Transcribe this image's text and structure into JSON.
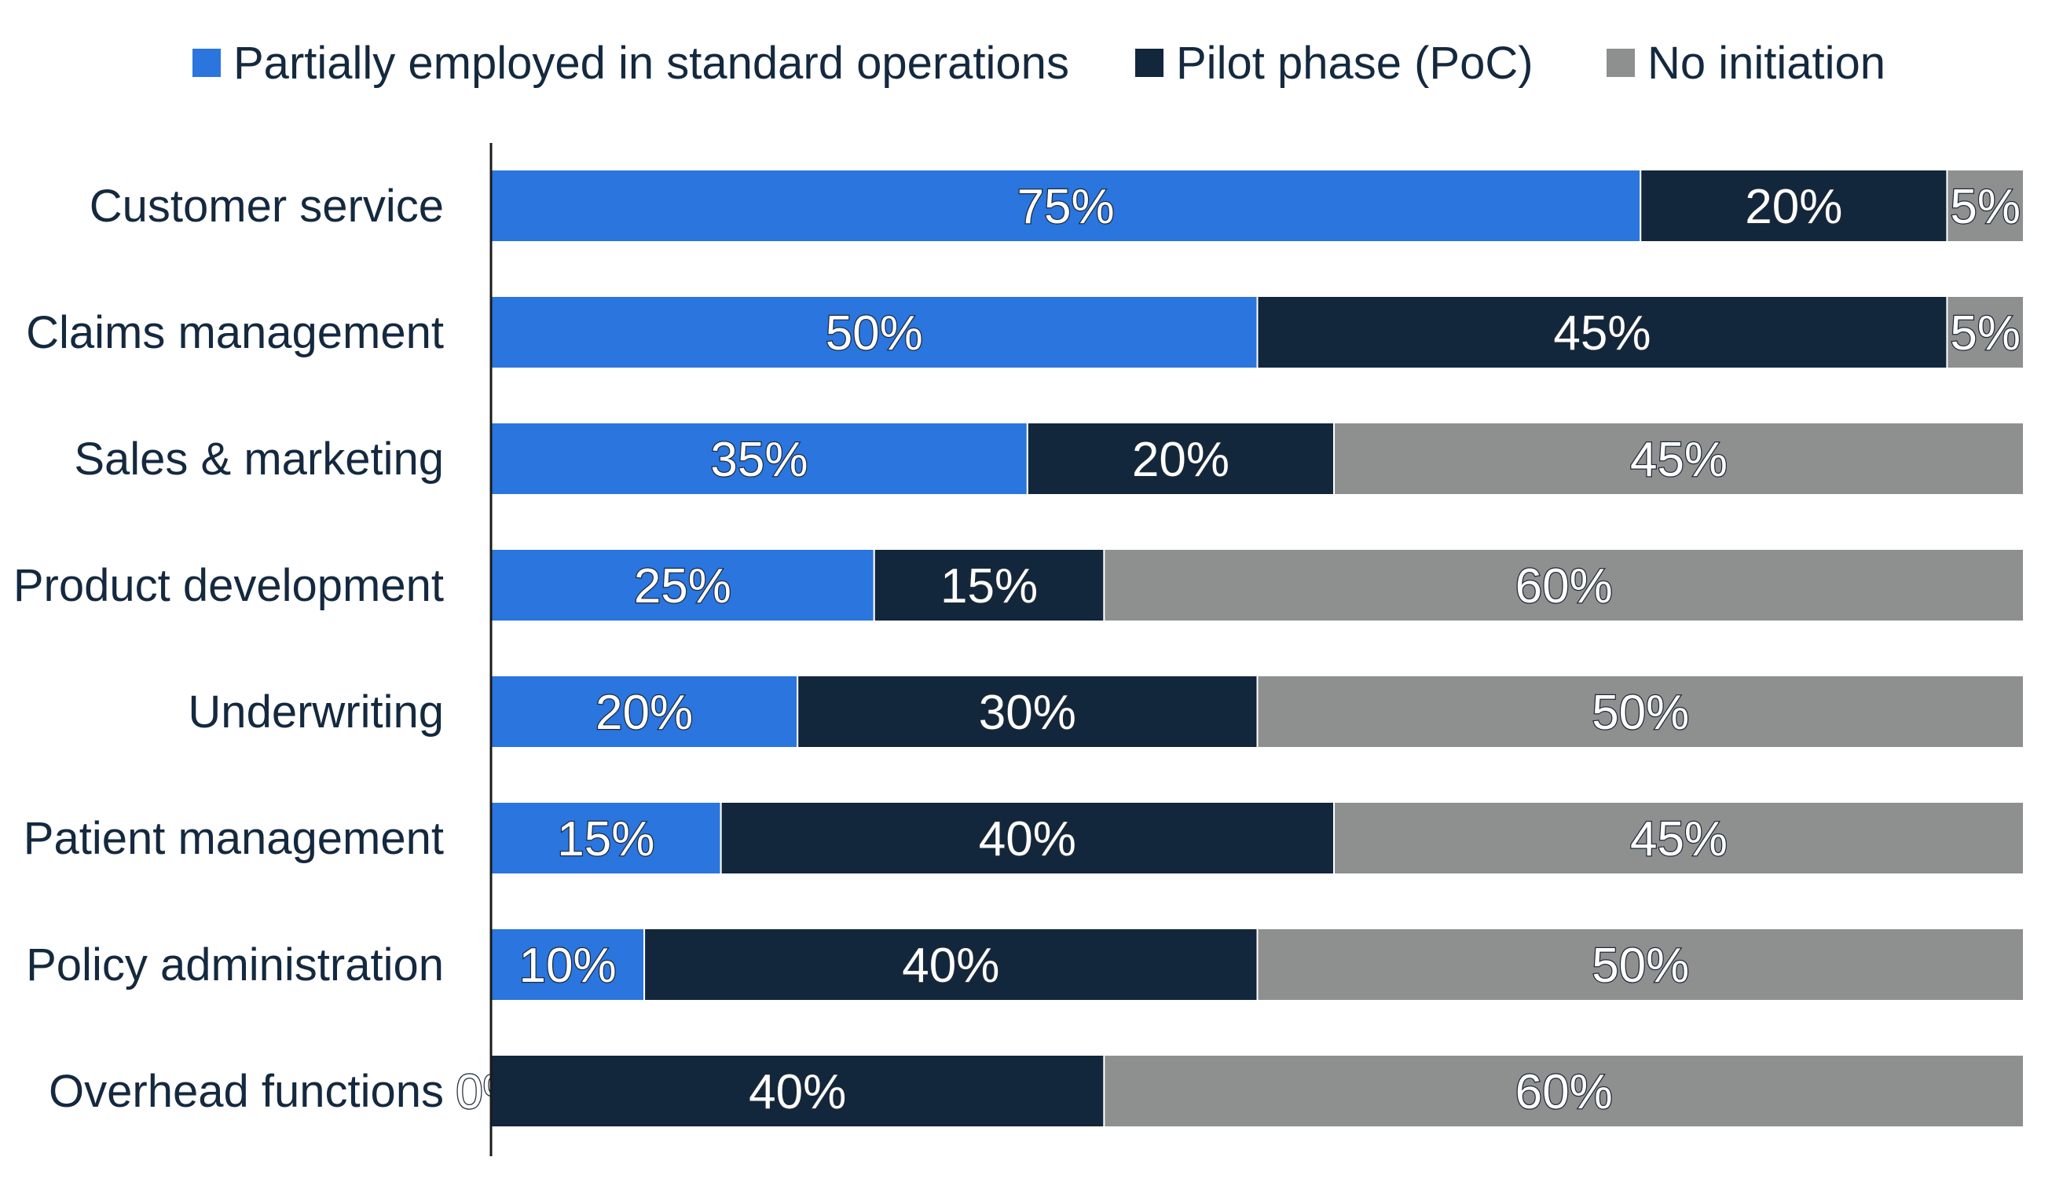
{
  "chart_data": {
    "type": "bar",
    "orientation": "horizontal",
    "stacked": true,
    "title": "",
    "xlabel": "",
    "ylabel": "",
    "xlim": [
      0,
      100
    ],
    "grid": false,
    "legend_position": "top",
    "categories": [
      "Customer service",
      "Claims management",
      "Sales & marketing",
      "Product development",
      "Underwriting",
      "Patient management",
      "Policy administration",
      "Overhead functions"
    ],
    "series": [
      {
        "name": "Partially employed in standard operations",
        "color": "#2a75de",
        "values": [
          75,
          50,
          35,
          25,
          20,
          15,
          10,
          0
        ]
      },
      {
        "name": "Pilot phase (PoC)",
        "color": "#12263c",
        "values": [
          20,
          45,
          20,
          15,
          30,
          40,
          40,
          40
        ]
      },
      {
        "name": "No initiation",
        "color": "#8e8f8f",
        "values": [
          5,
          5,
          45,
          60,
          50,
          45,
          50,
          60
        ]
      }
    ],
    "value_suffix": "%"
  }
}
